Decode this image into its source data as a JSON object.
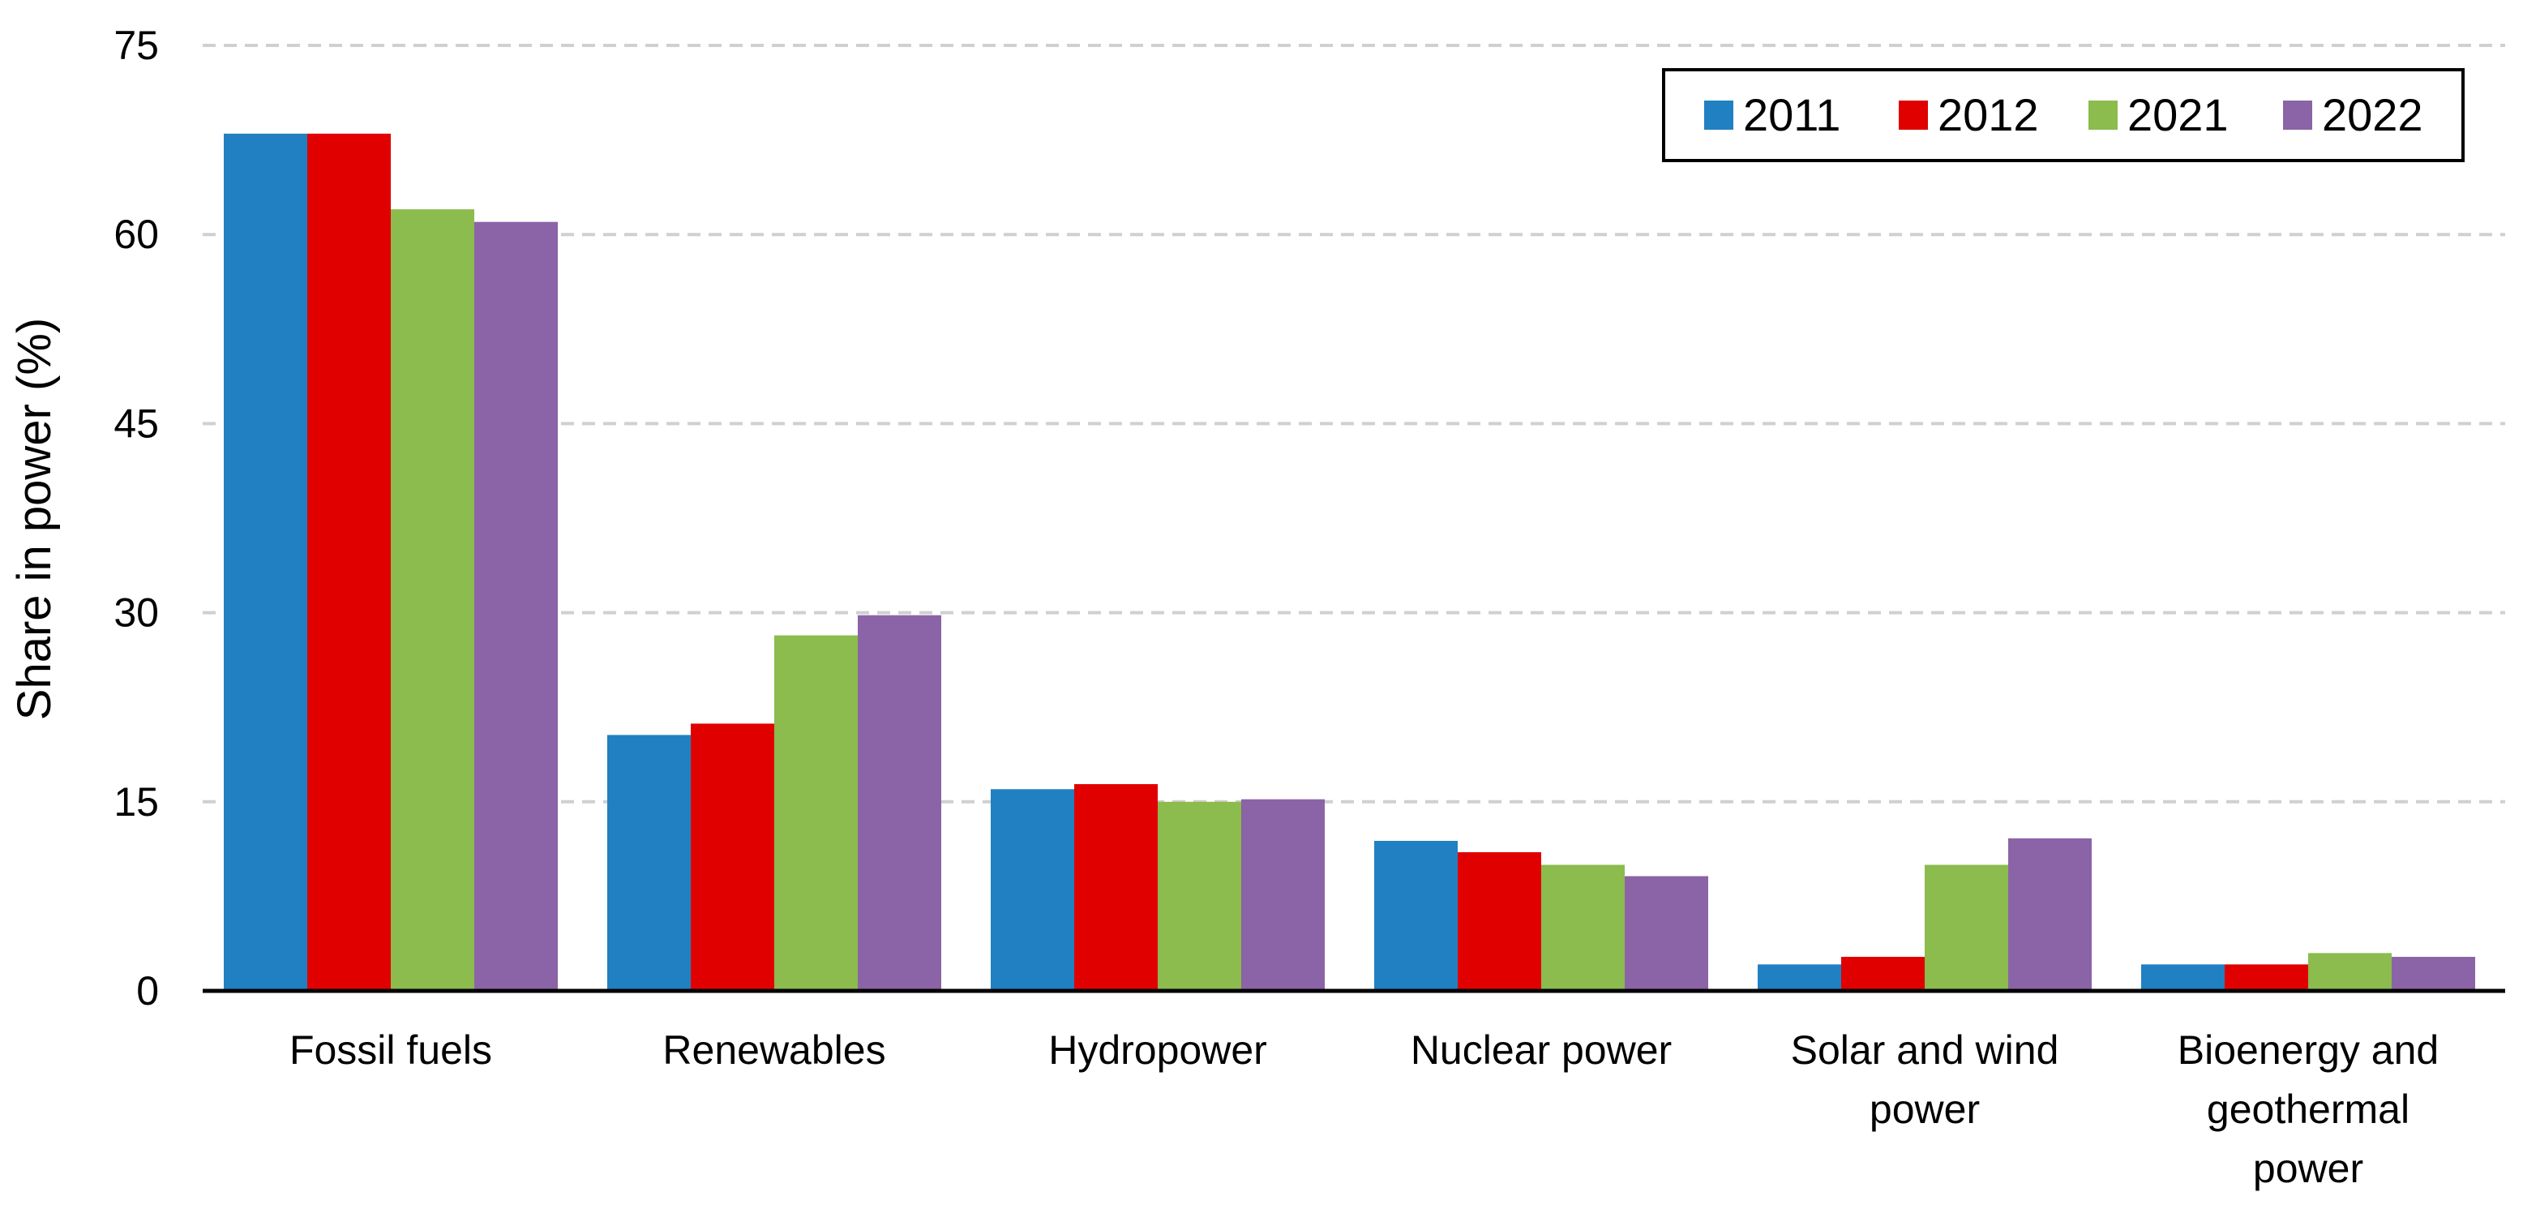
{
  "chart_data": {
    "type": "bar",
    "title": "",
    "xlabel": "",
    "ylabel": "Share in power (%)",
    "ylim": [
      0,
      75
    ],
    "yticks": [
      "0",
      "15",
      "30",
      "45",
      "60",
      "75"
    ],
    "ytick_values": [
      0,
      15,
      30,
      45,
      60,
      75
    ],
    "grid": true,
    "legend_position": "top-right",
    "categories": [
      [
        "Fossil fuels"
      ],
      [
        "Renewables"
      ],
      [
        "Hydropower"
      ],
      [
        "Nuclear power"
      ],
      [
        "Solar and wind",
        "power"
      ],
      [
        "Bioenergy and",
        "geothermal",
        "power"
      ]
    ],
    "series": [
      {
        "name": "2011",
        "color": "#2180C1",
        "values": [
          68,
          20.3,
          16,
          11.9,
          2.1,
          2.1
        ]
      },
      {
        "name": "2012",
        "color": "#E00000",
        "values": [
          68,
          21.2,
          16.4,
          11,
          2.7,
          2.1
        ]
      },
      {
        "name": "2021",
        "color": "#8CBB4E",
        "values": [
          62,
          28.2,
          15,
          10,
          10,
          3
        ]
      },
      {
        "name": "2022",
        "color": "#8A64A6",
        "values": [
          61,
          29.8,
          15.2,
          9.1,
          12.1,
          2.7
        ]
      }
    ]
  }
}
